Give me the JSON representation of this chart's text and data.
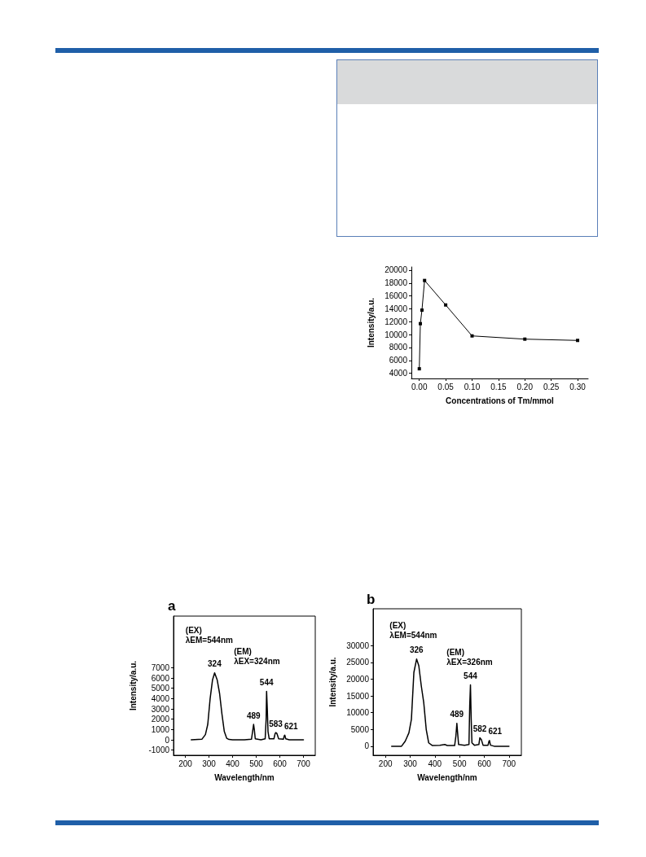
{
  "chart_data": [
    {
      "type": "line",
      "xlabel": "Concentrations of Tm/mmol",
      "ylabel": "Intensity/a.u.",
      "marker": "square",
      "line_style": "solid",
      "grid": false,
      "x": [
        0,
        0.002,
        0.005,
        0.01,
        0.05,
        0.1,
        0.2,
        0.3
      ],
      "series": [
        {
          "color": "#000000",
          "values": [
            4700,
            11700,
            13800,
            18400,
            14600,
            9800,
            9300,
            9100
          ]
        }
      ],
      "xlim": [
        -0.015,
        0.32
      ],
      "xticks": [
        {
          "value": 0,
          "label": "0.00"
        },
        0.05,
        {
          "value": 0.1,
          "label": "0.10"
        },
        0.15,
        {
          "value": 0.2,
          "label": "0.20"
        },
        0.25,
        {
          "value": 0.3,
          "label": "0.30"
        }
      ],
      "ylim": [
        3200,
        20500
      ],
      "yticks": [
        4000,
        6000,
        8000,
        10000,
        12000,
        14000,
        16000,
        18000,
        20000
      ]
    },
    {
      "type": "line",
      "title": "a",
      "xlabel": "Wavelength/nm",
      "ylabel": "Intensity/a.u.",
      "marker": "none",
      "line_style": "solid",
      "grid": false,
      "x": [
        225,
        270,
        285,
        295,
        305,
        315,
        324,
        335,
        345,
        355,
        365,
        375,
        385,
        400,
        450,
        480,
        486,
        489,
        492,
        496,
        520,
        538,
        542,
        544,
        547,
        550,
        555,
        575,
        580,
        583,
        588,
        595,
        615,
        619,
        621,
        625,
        640,
        700
      ],
      "series": [
        {
          "color": "#000000",
          "values": [
            0,
            50,
            500,
            1500,
            4000,
            5800,
            6500,
            5800,
            4500,
            2500,
            800,
            150,
            30,
            0,
            0,
            50,
            1000,
            1500,
            1000,
            100,
            0,
            100,
            2000,
            4700,
            3000,
            800,
            100,
            100,
            600,
            700,
            600,
            100,
            50,
            400,
            450,
            100,
            0,
            0
          ]
        }
      ],
      "xlim": [
        150,
        750
      ],
      "xticks": [
        200,
        300,
        400,
        500,
        600,
        700
      ],
      "ylim": [
        -1500,
        12000
      ],
      "yticks": [
        -1000,
        0,
        1000,
        2000,
        3000,
        4000,
        5000,
        6000,
        7000
      ],
      "annotations": [
        "(EX)\nλEM=544nm",
        "(EM)\nλEX=324nm",
        {
          "text": "324",
          "x": 324,
          "y": 6500
        },
        {
          "text": "544",
          "x": 544,
          "y": 4700
        },
        {
          "text": "489",
          "x": 489,
          "y": 1500
        },
        {
          "text": "583",
          "x": 583,
          "y": 700
        },
        {
          "text": "621",
          "x": 621,
          "y": 450
        }
      ]
    },
    {
      "type": "line",
      "title": "b",
      "xlabel": "Wavelength/nm",
      "ylabel": "Intensity/a.u.",
      "marker": "none",
      "line_style": "solid",
      "grid": false,
      "x": [
        225,
        265,
        280,
        295,
        305,
        315,
        326,
        335,
        345,
        355,
        365,
        375,
        390,
        420,
        440,
        450,
        480,
        485,
        489,
        492,
        496,
        520,
        538,
        541,
        544,
        547,
        550,
        560,
        578,
        582,
        588,
        595,
        615,
        619,
        621,
        625,
        640,
        700
      ],
      "series": [
        {
          "color": "#000000",
          "values": [
            0,
            0,
            1500,
            4000,
            8000,
            22000,
            26000,
            24000,
            18000,
            13000,
            5000,
            1000,
            200,
            300,
            500,
            200,
            200,
            3000,
            6800,
            4000,
            500,
            300,
            500,
            12000,
            18300,
            8000,
            1000,
            300,
            500,
            2500,
            2000,
            300,
            300,
            1500,
            1700,
            300,
            0,
            0
          ]
        }
      ],
      "xlim": [
        150,
        750
      ],
      "xticks": [
        200,
        300,
        400,
        500,
        600,
        700
      ],
      "ylim": [
        -2700,
        41000
      ],
      "yticks": [
        0,
        5000,
        10000,
        15000,
        20000,
        25000,
        30000
      ],
      "annotations": [
        "(EX)\nλEM=544nm",
        "(EM)\nλEX=326nm",
        {
          "text": "326",
          "x": 326,
          "y": 26000
        },
        {
          "text": "544",
          "x": 544,
          "y": 18300
        },
        {
          "text": "489",
          "x": 489,
          "y": 6800
        },
        {
          "text": "582",
          "x": 582,
          "y": 2500
        },
        {
          "text": "621",
          "x": 621,
          "y": 1700
        }
      ]
    }
  ]
}
